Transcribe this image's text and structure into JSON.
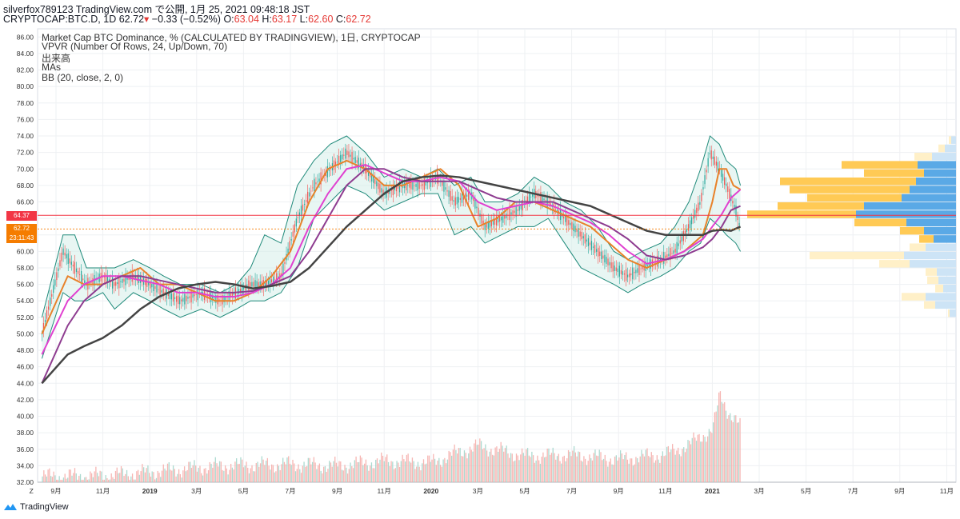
{
  "header": {
    "line1": "silverfox789123 TradingView.com で公開, 1月 25, 2021 09:48:18 JST",
    "symbol": "CRYPTOCAP:BTC.D, 1D",
    "last": "62.72",
    "change": "−0.33 (−0.52%)",
    "o_label": "O:",
    "o": "63.04",
    "h_label": "H:",
    "h": "63.17",
    "l_label": "L:",
    "l": "62.60",
    "c_label": "C:",
    "c": "62.72"
  },
  "indicators": [
    "Market Cap BTC Dominance, % (CALCULATED BY TRADINGVIEW), 1日, CRYPTOCAP",
    "VPVR (Number Of Rows, 24, Up/Down, 70)",
    "出来高",
    "MAs",
    "BB (20, close, 2, 0)"
  ],
  "price_tags": {
    "red_line": "64.37",
    "last": "62.72",
    "countdown": "23:11:43"
  },
  "footer": {
    "brand": "TradingView"
  },
  "colors": {
    "ma_fast": "#e8822a",
    "ma_mid": "#e040d0",
    "ma_slow": "#8e3c90",
    "ma_long": "#444444",
    "bb": "#1f8a7a",
    "bb_fill": "#d6efe9",
    "redline": "#f23645",
    "vol_up": "#9ed4c8",
    "vol_down": "#f4a9a6",
    "vp_up": "#5aa9e6",
    "vp_down": "#ffca55",
    "vp_up_light": "#cde4f6",
    "vp_down_light": "#fff0c8"
  },
  "chart_data": {
    "type": "line",
    "title": "Market Cap BTC Dominance, % (CALCULATED BY TRADINGVIEW), 1日, CRYPTOCAP",
    "ylim": [
      32,
      87
    ],
    "y_ticks": [
      "86.00",
      "84.00",
      "82.00",
      "80.00",
      "78.00",
      "76.00",
      "74.00",
      "72.00",
      "70.00",
      "68.00",
      "66.00",
      "64.00",
      "62.00",
      "60.00",
      "58.00",
      "56.00",
      "54.00",
      "52.00",
      "50.00",
      "48.00",
      "46.00",
      "44.00",
      "42.00",
      "40.00",
      "38.00",
      "36.00",
      "34.00",
      "32.00"
    ],
    "x_ticks": [
      {
        "label": "Z",
        "t": -1.05
      },
      {
        "label": "9月",
        "t": 0
      },
      {
        "label": "11月",
        "t": 2
      },
      {
        "label": "2019",
        "t": 4
      },
      {
        "label": "3月",
        "t": 6
      },
      {
        "label": "5月",
        "t": 8
      },
      {
        "label": "7月",
        "t": 10
      },
      {
        "label": "9月",
        "t": 12
      },
      {
        "label": "11月",
        "t": 14
      },
      {
        "label": "2020",
        "t": 16
      },
      {
        "label": "3月",
        "t": 18
      },
      {
        "label": "5月",
        "t": 20
      },
      {
        "label": "7月",
        "t": 22
      },
      {
        "label": "9月",
        "t": 24
      },
      {
        "label": "11月",
        "t": 26
      },
      {
        "label": "2021",
        "t": 28
      },
      {
        "label": "3月",
        "t": 30
      },
      {
        "label": "5月",
        "t": 32
      },
      {
        "label": "7月",
        "t": 34
      },
      {
        "label": "9月",
        "t": 36
      },
      {
        "label": "11月",
        "t": 38
      }
    ],
    "red_line_value": 64.37,
    "last_value": 62.72,
    "price": {
      "t": [
        -0.6,
        0.3,
        0.8,
        1.3,
        2.0,
        2.5,
        3.3,
        4.0,
        4.6,
        5.3,
        6.2,
        7.0,
        7.7,
        8.3,
        8.9,
        9.6,
        10.3,
        11.0,
        11.7,
        12.4,
        13.2,
        14.0,
        14.8,
        15.6,
        16.3,
        17.0,
        17.7,
        18.3,
        19.0,
        19.7,
        20.4,
        21.0,
        21.7,
        22.4,
        23.1,
        23.8,
        24.4,
        25.0,
        25.8,
        26.4,
        27.0,
        27.5,
        27.9,
        28.3,
        28.6,
        29.0,
        29.2
      ],
      "v": [
        50,
        60,
        58,
        56,
        57,
        56,
        57,
        56,
        55,
        54,
        55,
        54,
        55,
        56,
        56,
        57,
        64,
        68,
        70,
        72,
        70,
        67,
        68,
        68,
        69,
        66,
        67,
        63,
        64,
        65,
        67,
        66,
        64,
        62,
        60,
        58,
        57,
        58,
        59,
        60,
        63,
        66,
        72,
        70,
        68,
        65,
        62.72
      ]
    },
    "series": [
      {
        "name": "BB",
        "t": [
          -0.6,
          0.3,
          0.8,
          1.3,
          2.0,
          2.5,
          3.3,
          4.0,
          4.6,
          5.3,
          6.2,
          7.0,
          7.7,
          8.3,
          8.9,
          9.6,
          10.3,
          11.0,
          11.7,
          12.4,
          13.2,
          14.0,
          14.8,
          15.6,
          16.3,
          17.0,
          17.7,
          18.3,
          19.0,
          19.7,
          20.4,
          21.0,
          21.7,
          22.4,
          23.1,
          23.8,
          24.4,
          25.0,
          25.8,
          26.4,
          27.0,
          27.5,
          27.9,
          28.3,
          28.6,
          29.0,
          29.2
        ],
        "upper": [
          52,
          62,
          62,
          58,
          58,
          58,
          59,
          58,
          57,
          56,
          56,
          55,
          56,
          58,
          62,
          61,
          68,
          71,
          73,
          74,
          72,
          69,
          70,
          69,
          70,
          68,
          69,
          66,
          66,
          67,
          69,
          68,
          66,
          65,
          63,
          60,
          59,
          60,
          61,
          63,
          66,
          70,
          74,
          73,
          71,
          70,
          68
        ],
        "lower": [
          47,
          55,
          54,
          54,
          55,
          53,
          55,
          54,
          53,
          52,
          53,
          52,
          53,
          54,
          54,
          55,
          58,
          64,
          66,
          68,
          67,
          65,
          66,
          67,
          67,
          62,
          63,
          61,
          62,
          63,
          63,
          64,
          61,
          58,
          57,
          56,
          55,
          56,
          57,
          58,
          60,
          61,
          64,
          63,
          62,
          61,
          60
        ]
      },
      {
        "name": "MA fast",
        "t": [
          -0.6,
          0.5,
          1.2,
          2.0,
          2.8,
          3.6,
          4.4,
          5.2,
          6.0,
          6.8,
          7.6,
          8.4,
          9.2,
          10.0,
          10.8,
          11.6,
          12.4,
          13.2,
          14.0,
          14.8,
          15.6,
          16.4,
          17.2,
          18.0,
          18.8,
          19.6,
          20.4,
          21.2,
          22.0,
          22.8,
          23.6,
          24.4,
          25.2,
          26.0,
          26.8,
          27.6,
          28.0,
          28.3,
          28.6,
          28.9,
          29.2
        ],
        "v": [
          50,
          57,
          56,
          56,
          57,
          58,
          56,
          56,
          55,
          54,
          54,
          55,
          57,
          60,
          66,
          70,
          71,
          70,
          68,
          68,
          69,
          70,
          68,
          63,
          64,
          66,
          66,
          65,
          64,
          63,
          61,
          59,
          58,
          59,
          60,
          62,
          66,
          70,
          70,
          68,
          67.5
        ]
      },
      {
        "name": "MA mid",
        "t": [
          -0.6,
          0.5,
          1.2,
          2.0,
          2.8,
          3.6,
          4.4,
          5.2,
          6.0,
          6.8,
          7.6,
          8.4,
          9.2,
          10.0,
          10.8,
          11.6,
          12.4,
          13.2,
          14.0,
          14.8,
          15.6,
          16.4,
          17.2,
          18.0,
          18.8,
          19.6,
          20.4,
          21.2,
          22.0,
          22.8,
          23.6,
          24.4,
          25.2,
          26.0,
          26.8,
          27.6,
          28.0,
          28.4,
          28.8,
          29.2
        ],
        "v": [
          47.5,
          54,
          56,
          57,
          57,
          56.5,
          56,
          55,
          55,
          54.5,
          54.5,
          55,
          56,
          58,
          63,
          67,
          70,
          70.5,
          69.5,
          68.5,
          68.5,
          69,
          68.5,
          66,
          65,
          65.5,
          66,
          65.5,
          64.5,
          63.5,
          62,
          60,
          58.5,
          59,
          60,
          61.5,
          63,
          64.5,
          66.5,
          67.5
        ]
      },
      {
        "name": "MA slow",
        "t": [
          -0.6,
          0.5,
          1.2,
          2.0,
          2.8,
          3.6,
          4.4,
          5.2,
          6.0,
          6.8,
          7.6,
          8.4,
          9.2,
          10.0,
          10.8,
          11.6,
          12.4,
          13.2,
          14.0,
          14.8,
          15.6,
          16.4,
          17.2,
          18.0,
          18.8,
          19.6,
          20.4,
          21.2,
          22.0,
          22.8,
          23.6,
          24.4,
          25.2,
          26.0,
          26.8,
          27.6,
          28.0,
          28.4,
          28.8,
          29.2
        ],
        "v": [
          44,
          51,
          54,
          56,
          57,
          57,
          56.5,
          56,
          55.5,
          55,
          55,
          55.2,
          56,
          57,
          60,
          64,
          68,
          70,
          70,
          69,
          68.5,
          68.5,
          68.5,
          67.5,
          66.5,
          66,
          66,
          66,
          65,
          64,
          63,
          61.5,
          59.5,
          59,
          59.5,
          60.5,
          61.5,
          63,
          65,
          65.5
        ]
      },
      {
        "name": "MA long",
        "t": [
          -0.6,
          0.5,
          1.2,
          2.0,
          2.8,
          3.6,
          4.4,
          5.2,
          6.0,
          6.8,
          7.6,
          8.4,
          9.2,
          10.0,
          10.8,
          11.6,
          12.4,
          13.2,
          14.0,
          14.8,
          15.6,
          16.4,
          17.2,
          18.0,
          18.8,
          19.6,
          20.4,
          21.2,
          22.0,
          22.8,
          23.6,
          24.4,
          25.2,
          26.0,
          26.8,
          27.6,
          28.0,
          28.4,
          28.8,
          29.2
        ],
        "v": [
          44,
          47.5,
          48.5,
          49.5,
          51,
          53,
          54.5,
          55.5,
          56,
          56.3,
          56,
          55.5,
          55.8,
          56.3,
          58,
          60.5,
          63,
          65,
          67,
          68.5,
          69,
          69.2,
          69,
          68.5,
          68,
          67.5,
          67,
          66.5,
          66,
          65.5,
          64.5,
          63.5,
          62.5,
          62,
          62,
          62,
          62.5,
          62.6,
          62.5,
          63
        ]
      }
    ],
    "volume": {
      "t_start": -0.6,
      "t_end": 29.2,
      "profile_t": [
        -0.6,
        2,
        5,
        7,
        10,
        12,
        14,
        16,
        17,
        18,
        20,
        22,
        24,
        26,
        27,
        28,
        28.3,
        28.6,
        29,
        29.2
      ],
      "profile_v": [
        32.7,
        32.8,
        33.5,
        34.0,
        34.2,
        34.0,
        34.6,
        34.4,
        35.5,
        36.4,
        35.2,
        35.3,
        34.8,
        35.4,
        36.6,
        38.5,
        42.5,
        40.8,
        39.6,
        38.5
      ]
    },
    "volume_profile": {
      "rows": [
        {
          "price": 73.5,
          "up": 6,
          "down": 3,
          "light": true
        },
        {
          "price": 72.5,
          "up": 14,
          "down": 8,
          "light": true
        },
        {
          "price": 71.5,
          "up": 30,
          "down": 22,
          "light": true
        },
        {
          "price": 70.5,
          "up": 48,
          "down": 95
        },
        {
          "price": 69.5,
          "up": 40,
          "down": 75
        },
        {
          "price": 68.5,
          "up": 50,
          "down": 170
        },
        {
          "price": 67.5,
          "up": 58,
          "down": 150
        },
        {
          "price": 66.5,
          "up": 68,
          "down": 118
        },
        {
          "price": 65.5,
          "up": 115,
          "down": 108
        },
        {
          "price": 64.5,
          "up": 125,
          "down": 136
        },
        {
          "price": 63.5,
          "up": 62,
          "down": 65
        },
        {
          "price": 62.5,
          "up": 40,
          "down": 30
        },
        {
          "price": 61.5,
          "up": 28,
          "down": 18
        },
        {
          "price": 60.5,
          "up": 38,
          "down": 20,
          "light": true
        },
        {
          "price": 59.5,
          "up": 65,
          "down": 118,
          "light": true
        },
        {
          "price": 58.5,
          "up": 58,
          "down": 38,
          "light": true
        },
        {
          "price": 57.5,
          "up": 24,
          "down": 14,
          "light": true
        },
        {
          "price": 56.5,
          "up": 22,
          "down": 14,
          "light": true
        },
        {
          "price": 55.5,
          "up": 16,
          "down": 10,
          "light": true
        },
        {
          "price": 54.5,
          "up": 38,
          "down": 30,
          "light": true
        },
        {
          "price": 53.5,
          "up": 26,
          "down": 14,
          "light": true
        },
        {
          "price": 52.5,
          "up": 8,
          "down": 2,
          "light": true
        }
      ]
    }
  }
}
